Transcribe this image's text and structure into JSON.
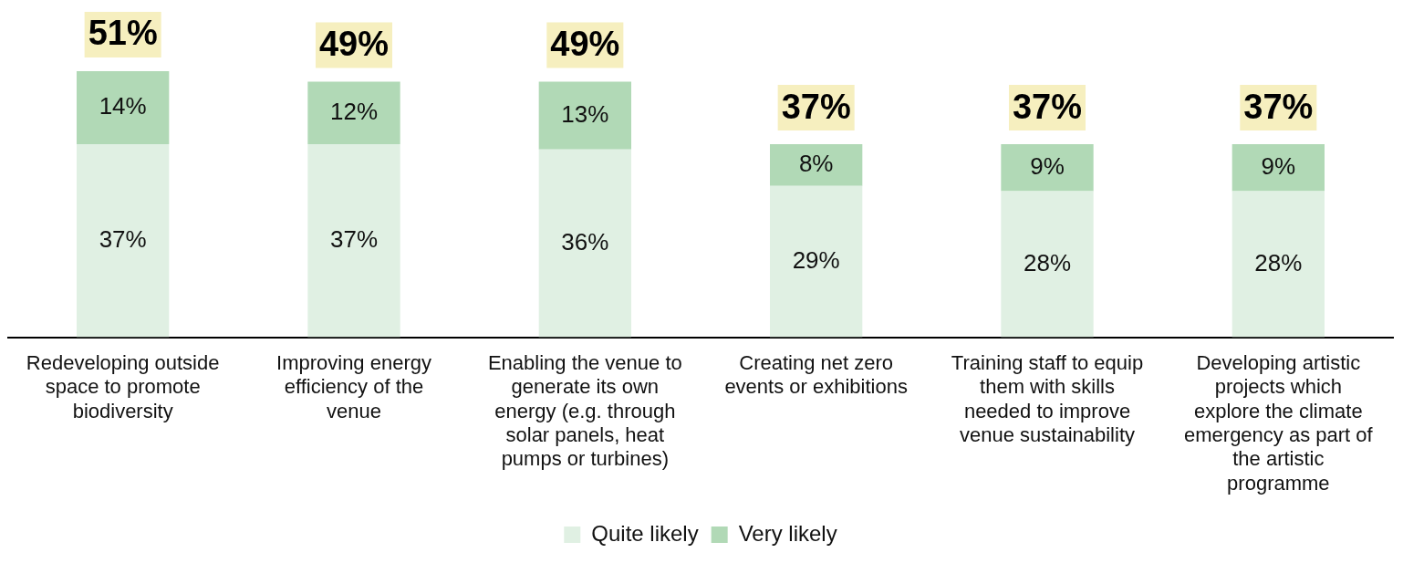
{
  "chart_data": {
    "type": "bar",
    "stacked": true,
    "legend": "bottom",
    "grid": false,
    "categories": [
      "Redeveloping outside space to promote biodiversity",
      "Improving energy efficiency of the venue",
      "Enabling the venue to generate its own energy (e.g. through solar panels, heat pumps or turbines)",
      "Creating net zero events or exhibitions",
      "Training staff to equip them with skills needed to improve venue sustainability",
      "Developing artistic projects which explore the climate emergency as part of the artistic programme"
    ],
    "series": [
      {
        "name": "Quite likely",
        "color": "#e0f0e3",
        "values": [
          37,
          37,
          36,
          29,
          28,
          28
        ],
        "value_labels": [
          "37%",
          "37%",
          "36%",
          "29%",
          "28%",
          "28%"
        ]
      },
      {
        "name": "Very likely",
        "color": "#b1d9b6",
        "values": [
          14,
          12,
          13,
          8,
          9,
          9
        ],
        "value_labels": [
          "14%",
          "12%",
          "13%",
          "8%",
          "9%",
          "9%"
        ]
      }
    ],
    "totals": [
      "51%",
      "49%",
      "49%",
      "37%",
      "37%",
      "37%"
    ]
  }
}
